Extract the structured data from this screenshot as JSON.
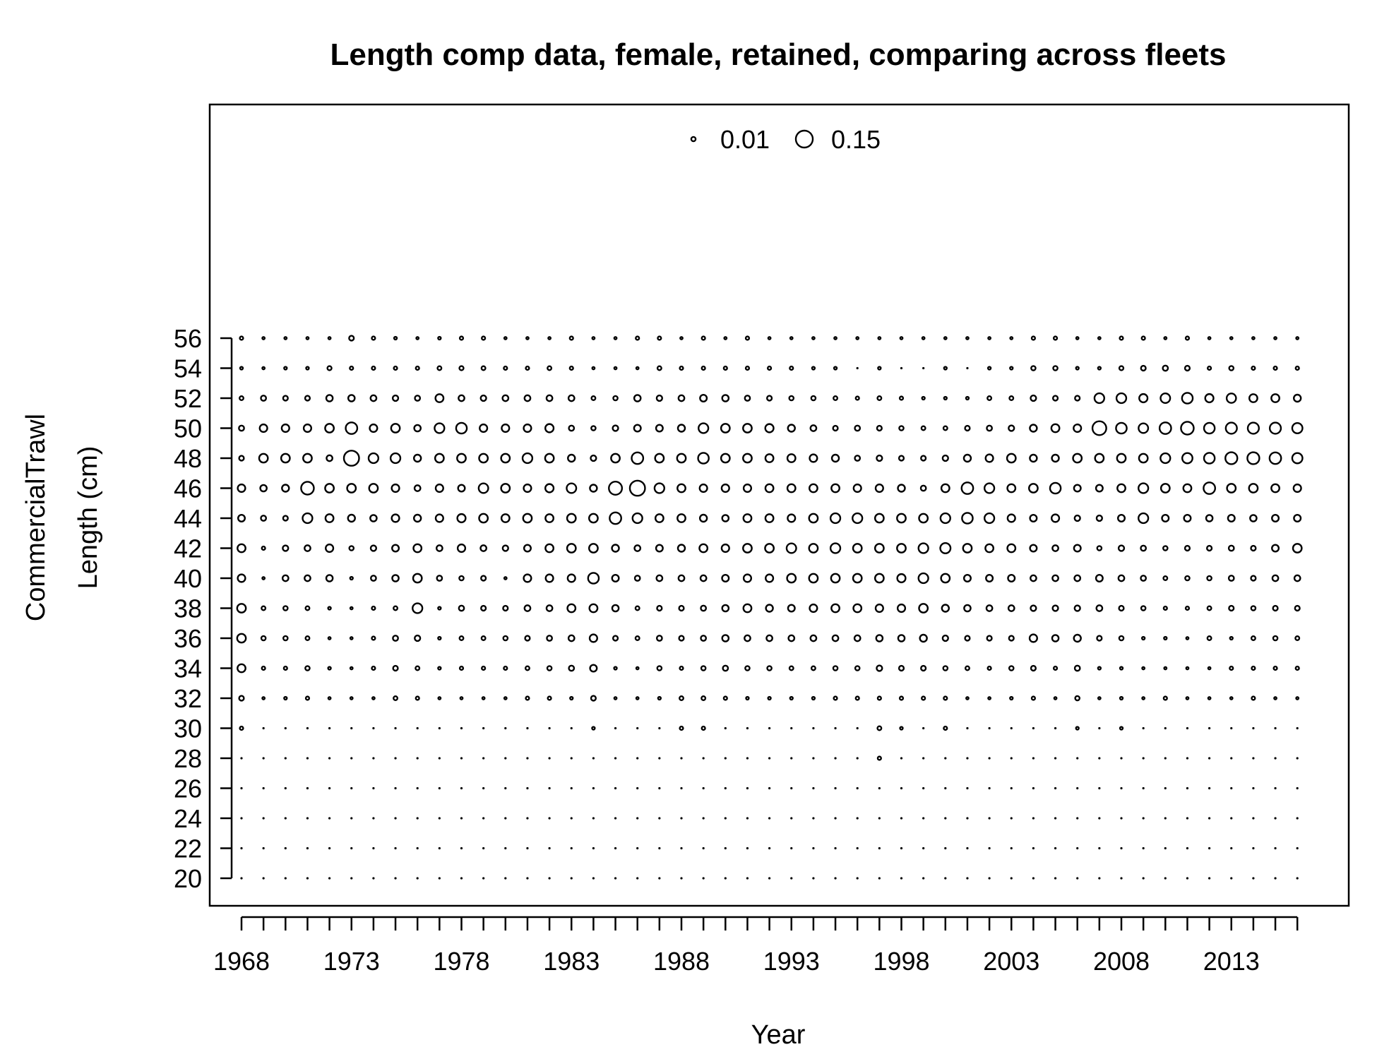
{
  "chart_data": {
    "type": "bubble",
    "title": "Length comp data, female, retained, comparing across fleets",
    "xlabel": "Year",
    "ylabel": "Length (cm)",
    "fleet_label": "CommercialTrawl",
    "x_tick_labels": [
      1968,
      1973,
      1978,
      1983,
      1988,
      1993,
      1998,
      2003,
      2008,
      2013
    ],
    "x_minor_ticks_from": 1968,
    "x_minor_ticks_to": 2016,
    "y_tick_labels": [
      20,
      22,
      24,
      26,
      28,
      30,
      32,
      34,
      36,
      38,
      40,
      42,
      44,
      46,
      48,
      50,
      52,
      54,
      56
    ],
    "xlim": [
      1968,
      2016
    ],
    "ylim": [
      20,
      56
    ],
    "legend": {
      "position": "top-center",
      "entries": [
        {
          "label": "0.01",
          "value": 0.01
        },
        {
          "label": "0.15",
          "value": 0.15
        }
      ]
    },
    "years": [
      1968,
      1969,
      1970,
      1971,
      1972,
      1973,
      1974,
      1975,
      1976,
      1977,
      1978,
      1979,
      1980,
      1981,
      1982,
      1983,
      1984,
      1985,
      1986,
      1987,
      1988,
      1989,
      1990,
      1991,
      1992,
      1993,
      1994,
      1995,
      1996,
      1997,
      1998,
      1999,
      2000,
      2001,
      2002,
      2003,
      2004,
      2005,
      2006,
      2007,
      2008,
      2009,
      2010,
      2011,
      2012,
      2013,
      2014,
      2015,
      2016
    ],
    "lengths": [
      20,
      22,
      24,
      26,
      28,
      30,
      32,
      34,
      36,
      38,
      40,
      42,
      44,
      46,
      48,
      50,
      52,
      54,
      56
    ],
    "proportions_by_length": {
      "56": [
        0.006,
        0.003,
        0.003,
        0.003,
        0.003,
        0.012,
        0.006,
        0.004,
        0.003,
        0.004,
        0.006,
        0.006,
        0.003,
        0.003,
        0.003,
        0.006,
        0.003,
        0.003,
        0.006,
        0.006,
        0.003,
        0.006,
        0.003,
        0.006,
        0.003,
        0.003,
        0.003,
        0.003,
        0.003,
        0.003,
        0.003,
        0.003,
        0.003,
        0.003,
        0.003,
        0.003,
        0.006,
        0.006,
        0.003,
        0.003,
        0.006,
        0.006,
        0.003,
        0.006,
        0.003,
        0.003,
        0.003,
        0.003,
        0.003
      ],
      "54": [
        0.004,
        0.003,
        0.004,
        0.004,
        0.009,
        0.006,
        0.006,
        0.006,
        0.006,
        0.008,
        0.009,
        0.008,
        0.006,
        0.006,
        0.008,
        0.006,
        0.003,
        0.003,
        0.003,
        0.008,
        0.006,
        0.006,
        0.006,
        0.006,
        0.006,
        0.006,
        0.004,
        0.004,
        0.002,
        0.004,
        0.002,
        0.002,
        0.004,
        0.002,
        0.004,
        0.004,
        0.01,
        0.01,
        0.004,
        0.004,
        0.009,
        0.012,
        0.014,
        0.012,
        0.006,
        0.01,
        0.006,
        0.006,
        0.006
      ],
      "52": [
        0.008,
        0.014,
        0.012,
        0.012,
        0.022,
        0.022,
        0.018,
        0.016,
        0.014,
        0.034,
        0.018,
        0.016,
        0.018,
        0.018,
        0.018,
        0.018,
        0.008,
        0.01,
        0.022,
        0.016,
        0.018,
        0.024,
        0.022,
        0.014,
        0.012,
        0.01,
        0.01,
        0.008,
        0.006,
        0.008,
        0.006,
        0.004,
        0.004,
        0.004,
        0.008,
        0.008,
        0.016,
        0.012,
        0.012,
        0.05,
        0.05,
        0.036,
        0.048,
        0.06,
        0.036,
        0.046,
        0.034,
        0.034,
        0.026
      ],
      "50": [
        0.014,
        0.03,
        0.03,
        0.03,
        0.04,
        0.07,
        0.03,
        0.04,
        0.022,
        0.05,
        0.06,
        0.03,
        0.03,
        0.03,
        0.036,
        0.014,
        0.01,
        0.016,
        0.024,
        0.024,
        0.026,
        0.05,
        0.04,
        0.04,
        0.036,
        0.026,
        0.018,
        0.012,
        0.014,
        0.012,
        0.01,
        0.008,
        0.008,
        0.012,
        0.014,
        0.016,
        0.026,
        0.034,
        0.03,
        0.1,
        0.06,
        0.048,
        0.07,
        0.085,
        0.06,
        0.065,
        0.065,
        0.065,
        0.055
      ],
      "48": [
        0.012,
        0.04,
        0.04,
        0.04,
        0.018,
        0.12,
        0.05,
        0.05,
        0.026,
        0.04,
        0.04,
        0.04,
        0.04,
        0.05,
        0.04,
        0.026,
        0.016,
        0.04,
        0.07,
        0.04,
        0.04,
        0.06,
        0.04,
        0.04,
        0.034,
        0.034,
        0.03,
        0.026,
        0.014,
        0.016,
        0.012,
        0.012,
        0.016,
        0.026,
        0.03,
        0.04,
        0.026,
        0.026,
        0.04,
        0.04,
        0.04,
        0.04,
        0.05,
        0.055,
        0.06,
        0.075,
        0.075,
        0.07,
        0.055
      ],
      "46": [
        0.03,
        0.022,
        0.026,
        0.085,
        0.04,
        0.04,
        0.04,
        0.03,
        0.018,
        0.03,
        0.024,
        0.048,
        0.04,
        0.03,
        0.036,
        0.048,
        0.026,
        0.09,
        0.12,
        0.05,
        0.034,
        0.03,
        0.03,
        0.03,
        0.034,
        0.034,
        0.034,
        0.034,
        0.03,
        0.03,
        0.026,
        0.014,
        0.034,
        0.07,
        0.05,
        0.034,
        0.04,
        0.06,
        0.024,
        0.024,
        0.034,
        0.05,
        0.04,
        0.034,
        0.07,
        0.04,
        0.04,
        0.034,
        0.03
      ],
      "44": [
        0.024,
        0.014,
        0.012,
        0.05,
        0.034,
        0.026,
        0.022,
        0.03,
        0.026,
        0.03,
        0.036,
        0.04,
        0.034,
        0.04,
        0.034,
        0.04,
        0.04,
        0.07,
        0.05,
        0.034,
        0.034,
        0.026,
        0.022,
        0.034,
        0.034,
        0.03,
        0.04,
        0.05,
        0.05,
        0.04,
        0.04,
        0.04,
        0.05,
        0.06,
        0.05,
        0.03,
        0.024,
        0.03,
        0.016,
        0.016,
        0.024,
        0.05,
        0.024,
        0.024,
        0.022,
        0.024,
        0.022,
        0.024,
        0.024
      ],
      "42": [
        0.034,
        0.006,
        0.016,
        0.018,
        0.03,
        0.01,
        0.016,
        0.024,
        0.034,
        0.018,
        0.03,
        0.018,
        0.016,
        0.024,
        0.034,
        0.04,
        0.04,
        0.026,
        0.018,
        0.024,
        0.026,
        0.034,
        0.03,
        0.04,
        0.04,
        0.048,
        0.04,
        0.05,
        0.04,
        0.04,
        0.04,
        0.05,
        0.055,
        0.04,
        0.034,
        0.034,
        0.024,
        0.018,
        0.024,
        0.01,
        0.016,
        0.014,
        0.01,
        0.012,
        0.012,
        0.014,
        0.012,
        0.024,
        0.04
      ],
      "40": [
        0.03,
        0.003,
        0.018,
        0.018,
        0.022,
        0.004,
        0.014,
        0.022,
        0.04,
        0.014,
        0.01,
        0.012,
        0.003,
        0.03,
        0.03,
        0.03,
        0.06,
        0.024,
        0.014,
        0.018,
        0.018,
        0.018,
        0.024,
        0.03,
        0.03,
        0.04,
        0.04,
        0.04,
        0.04,
        0.04,
        0.036,
        0.05,
        0.04,
        0.024,
        0.024,
        0.024,
        0.018,
        0.018,
        0.018,
        0.024,
        0.018,
        0.014,
        0.008,
        0.01,
        0.01,
        0.014,
        0.012,
        0.018,
        0.018
      ],
      "38": [
        0.04,
        0.008,
        0.01,
        0.008,
        0.004,
        0.003,
        0.006,
        0.008,
        0.05,
        0.004,
        0.014,
        0.012,
        0.012,
        0.018,
        0.018,
        0.034,
        0.034,
        0.022,
        0.008,
        0.012,
        0.012,
        0.014,
        0.022,
        0.034,
        0.026,
        0.024,
        0.03,
        0.034,
        0.034,
        0.03,
        0.03,
        0.04,
        0.026,
        0.022,
        0.018,
        0.018,
        0.016,
        0.016,
        0.016,
        0.018,
        0.012,
        0.01,
        0.006,
        0.006,
        0.008,
        0.012,
        0.01,
        0.012,
        0.012
      ],
      "36": [
        0.04,
        0.01,
        0.01,
        0.008,
        0.003,
        0.003,
        0.006,
        0.014,
        0.016,
        0.004,
        0.008,
        0.008,
        0.01,
        0.012,
        0.014,
        0.018,
        0.03,
        0.012,
        0.008,
        0.014,
        0.012,
        0.014,
        0.022,
        0.018,
        0.018,
        0.018,
        0.018,
        0.018,
        0.018,
        0.022,
        0.022,
        0.026,
        0.016,
        0.012,
        0.012,
        0.012,
        0.03,
        0.022,
        0.026,
        0.012,
        0.01,
        0.004,
        0.004,
        0.003,
        0.008,
        0.004,
        0.008,
        0.01,
        0.008
      ],
      "34": [
        0.034,
        0.006,
        0.006,
        0.01,
        0.004,
        0.003,
        0.006,
        0.012,
        0.008,
        0.004,
        0.006,
        0.006,
        0.006,
        0.008,
        0.01,
        0.014,
        0.024,
        0.004,
        0.003,
        0.01,
        0.006,
        0.01,
        0.014,
        0.01,
        0.01,
        0.008,
        0.008,
        0.01,
        0.01,
        0.016,
        0.012,
        0.012,
        0.01,
        0.008,
        0.006,
        0.01,
        0.012,
        0.006,
        0.014,
        0.004,
        0.004,
        0.003,
        0.003,
        0.003,
        0.003,
        0.006,
        0.006,
        0.006,
        0.006
      ],
      "32": [
        0.012,
        0.003,
        0.004,
        0.006,
        0.003,
        0.003,
        0.003,
        0.008,
        0.006,
        0.003,
        0.003,
        0.003,
        0.003,
        0.006,
        0.006,
        0.004,
        0.012,
        0.003,
        0.003,
        0.004,
        0.008,
        0.008,
        0.006,
        0.004,
        0.004,
        0.004,
        0.004,
        0.006,
        0.006,
        0.006,
        0.006,
        0.006,
        0.006,
        0.003,
        0.003,
        0.004,
        0.006,
        0.003,
        0.01,
        0.003,
        0.004,
        0.003,
        0.006,
        0.003,
        0.003,
        0.003,
        0.006,
        0.003,
        0.003
      ],
      "30": [
        0.006,
        0.002,
        0.002,
        0.002,
        0.002,
        0.002,
        0.002,
        0.002,
        0.002,
        0.002,
        0.002,
        0.002,
        0.002,
        0.002,
        0.002,
        0.002,
        0.004,
        0.002,
        0.002,
        0.002,
        0.006,
        0.006,
        0.002,
        0.002,
        0.002,
        0.002,
        0.002,
        0.002,
        0.002,
        0.008,
        0.004,
        0.002,
        0.006,
        0.002,
        0.002,
        0.002,
        0.002,
        0.002,
        0.004,
        0.002,
        0.004,
        0.002,
        0.002,
        0.002,
        0.002,
        0.002,
        0.002,
        0.002,
        0.002
      ],
      "28": [
        0.002,
        0.002,
        0.002,
        0.002,
        0.002,
        0.002,
        0.002,
        0.002,
        0.002,
        0.002,
        0.002,
        0.002,
        0.002,
        0.002,
        0.002,
        0.002,
        0.002,
        0.002,
        0.002,
        0.002,
        0.002,
        0.002,
        0.002,
        0.002,
        0.002,
        0.002,
        0.002,
        0.002,
        0.002,
        0.006,
        0.002,
        0.002,
        0.002,
        0.002,
        0.002,
        0.002,
        0.002,
        0.002,
        0.002,
        0.002,
        0.002,
        0.002,
        0.002,
        0.002,
        0.002,
        0.002,
        0.002,
        0.002,
        0.002
      ],
      "26": [
        0.002,
        0.002,
        0.002,
        0.002,
        0.002,
        0.002,
        0.002,
        0.002,
        0.002,
        0.002,
        0.002,
        0.002,
        0.002,
        0.002,
        0.002,
        0.002,
        0.002,
        0.002,
        0.002,
        0.002,
        0.002,
        0.002,
        0.002,
        0.002,
        0.002,
        0.002,
        0.002,
        0.002,
        0.002,
        0.002,
        0.002,
        0.002,
        0.002,
        0.002,
        0.002,
        0.002,
        0.002,
        0.002,
        0.002,
        0.002,
        0.002,
        0.002,
        0.002,
        0.002,
        0.002,
        0.002,
        0.002,
        0.002,
        0.002
      ],
      "24": [
        0.002,
        0.002,
        0.002,
        0.002,
        0.002,
        0.002,
        0.002,
        0.002,
        0.002,
        0.002,
        0.002,
        0.002,
        0.002,
        0.002,
        0.002,
        0.002,
        0.002,
        0.002,
        0.002,
        0.002,
        0.002,
        0.002,
        0.002,
        0.002,
        0.002,
        0.002,
        0.002,
        0.002,
        0.002,
        0.002,
        0.002,
        0.002,
        0.002,
        0.002,
        0.002,
        0.002,
        0.002,
        0.002,
        0.002,
        0.002,
        0.002,
        0.002,
        0.002,
        0.002,
        0.002,
        0.002,
        0.002,
        0.002,
        0.002
      ],
      "22": [
        0.002,
        0.002,
        0.002,
        0.002,
        0.002,
        0.002,
        0.002,
        0.002,
        0.002,
        0.002,
        0.002,
        0.002,
        0.002,
        0.002,
        0.002,
        0.002,
        0.002,
        0.002,
        0.002,
        0.002,
        0.002,
        0.002,
        0.002,
        0.002,
        0.002,
        0.002,
        0.002,
        0.002,
        0.002,
        0.002,
        0.002,
        0.002,
        0.002,
        0.002,
        0.002,
        0.002,
        0.002,
        0.002,
        0.002,
        0.002,
        0.002,
        0.002,
        0.002,
        0.002,
        0.002,
        0.002,
        0.002,
        0.002,
        0.002
      ],
      "20": [
        0.002,
        0.002,
        0.002,
        0.002,
        0.002,
        0.002,
        0.002,
        0.002,
        0.002,
        0.002,
        0.002,
        0.002,
        0.002,
        0.002,
        0.002,
        0.002,
        0.002,
        0.002,
        0.002,
        0.002,
        0.002,
        0.002,
        0.002,
        0.002,
        0.002,
        0.002,
        0.002,
        0.002,
        0.002,
        0.002,
        0.002,
        0.002,
        0.002,
        0.002,
        0.002,
        0.002,
        0.002,
        0.002,
        0.002,
        0.002,
        0.002,
        0.002,
        0.002,
        0.002,
        0.002,
        0.002,
        0.002,
        0.002,
        0.002
      ]
    }
  }
}
